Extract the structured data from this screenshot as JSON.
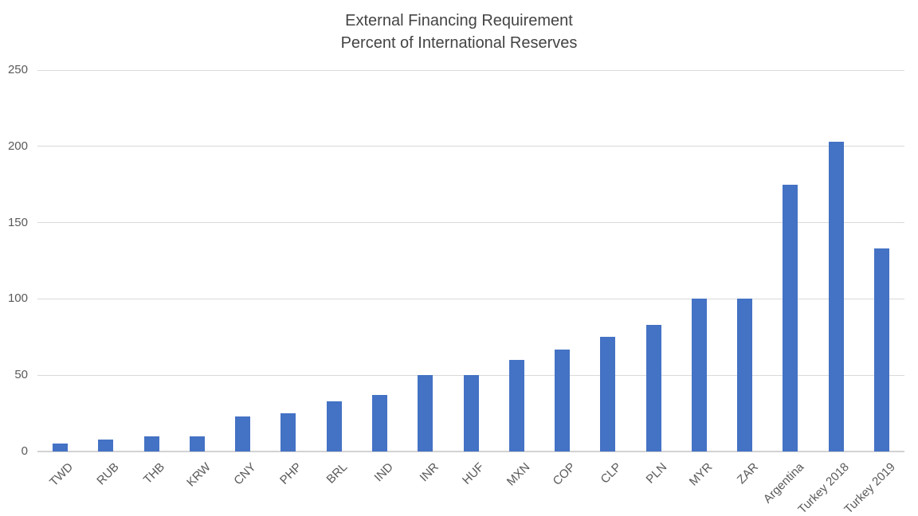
{
  "title": {
    "line1": "External Financing Requirement",
    "line2": "Percent of International Reserves"
  },
  "chart_data": {
    "type": "bar",
    "title": "External Financing Requirement",
    "subtitle": "Percent of International Reserves",
    "categories": [
      "TWD",
      "RUB",
      "THB",
      "KRW",
      "CNY",
      "PHP",
      "BRL",
      "IND",
      "INR",
      "HUF",
      "MXN",
      "COP",
      "CLP",
      "PLN",
      "MYR",
      "ZAR",
      "Argentina",
      "Turkey 2018",
      "Turkey 2019"
    ],
    "values": [
      5,
      8,
      10,
      10,
      23,
      25,
      33,
      37,
      50,
      50,
      60,
      67,
      75,
      83,
      100,
      100,
      175,
      203,
      133
    ],
    "xlabel": "",
    "ylabel": "",
    "ylim": [
      0,
      250
    ],
    "yticks": [
      0,
      50,
      100,
      150,
      200,
      250
    ],
    "grid": true,
    "legend": false,
    "bar_color": "#4472C4",
    "gridline_color": "#D9D9D9",
    "tick_label_color": "#595959",
    "title_color": "#444444"
  }
}
